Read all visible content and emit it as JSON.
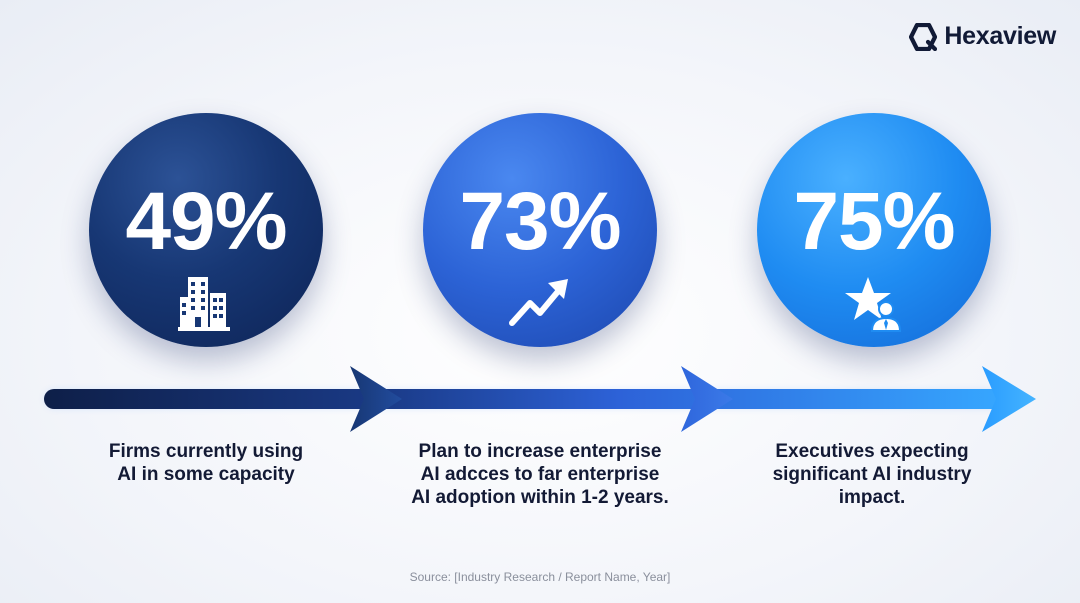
{
  "brand": {
    "name": "Hexaview",
    "icon": "hexagon-logo-icon"
  },
  "stats": [
    {
      "value": "49%",
      "icon": "office-buildings-icon",
      "caption": [
        "Firms currently using",
        "AI in some capacity"
      ]
    },
    {
      "value": "73%",
      "icon": "trend-up-arrow-icon",
      "caption": [
        "Plan to increase enterprise",
        "AI adcces to far enterprise",
        "AI adoption within 1-2 years."
      ]
    },
    {
      "value": "75%",
      "icon": "star-executive-icon",
      "caption": [
        "Executives expecting",
        "significant AI industry",
        "impact."
      ]
    }
  ],
  "source": "Source: [Industry Research / Report Name, Year]",
  "colors": {
    "navy": "#0d2355",
    "blue": "#2c63d6",
    "sky": "#1f8cf2",
    "text": "#131a35",
    "muted": "#8a8f9c"
  }
}
